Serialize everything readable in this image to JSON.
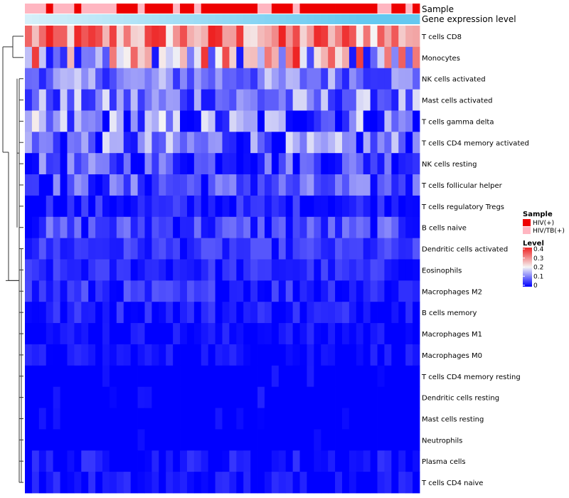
{
  "chart_data": {
    "type": "heatmap",
    "title": "",
    "annotation_tracks": [
      {
        "name": "Sample"
      },
      {
        "name": "Gene expression level"
      }
    ],
    "legend": {
      "sample_title": "Sample",
      "sample_items": [
        {
          "label": "HIV(+)",
          "color": "#ee0000"
        },
        {
          "label": "HIV/TB(+)",
          "color": "#ffb6c1"
        }
      ],
      "level_title": "Level",
      "level_ticks": [
        "0.4",
        "0.3",
        "0.2",
        "0.1",
        "0"
      ],
      "level_range": [
        0,
        0.4
      ],
      "colors": {
        "low": "#0000ff",
        "mid": "#f5f5f5",
        "high": "#ee2222"
      }
    },
    "rows": [
      "T cells CD8",
      "Monocytes",
      "NK cells activated",
      "Mast cells activated",
      "T cells gamma delta",
      "T cells CD4 memory activated",
      "NK cells resting",
      "T cells follicular helper",
      "T cells regulatory  Tregs",
      "B cells naive",
      "Dendritic cells activated",
      "Eosinophils",
      "Macrophages M2",
      "B cells memory",
      "Macrophages M1",
      "Macrophages M0",
      "T cells CD4 memory resting",
      "Dendritic cells resting",
      "Mast cells resting",
      "Neutrophils",
      "Plasma cells",
      "T cells CD4 naive"
    ],
    "sample_groups": [
      "HIV/TB(+)",
      "HIV/TB(+)",
      "HIV/TB(+)",
      "HIV(+)",
      "HIV/TB(+)",
      "HIV/TB(+)",
      "HIV/TB(+)",
      "HIV(+)",
      "HIV/TB(+)",
      "HIV/TB(+)",
      "HIV/TB(+)",
      "HIV/TB(+)",
      "HIV/TB(+)",
      "HIV(+)",
      "HIV(+)",
      "HIV(+)",
      "HIV/TB(+)",
      "HIV(+)",
      "HIV(+)",
      "HIV(+)",
      "HIV(+)",
      "HIV/TB(+)",
      "HIV(+)",
      "HIV(+)",
      "HIV/TB(+)",
      "HIV(+)",
      "HIV(+)",
      "HIV(+)",
      "HIV(+)",
      "HIV(+)",
      "HIV(+)",
      "HIV(+)",
      "HIV(+)",
      "HIV/TB(+)",
      "HIV/TB(+)",
      "HIV(+)",
      "HIV(+)",
      "HIV(+)",
      "HIV/TB(+)",
      "HIV(+)",
      "HIV(+)",
      "HIV(+)",
      "HIV(+)",
      "HIV(+)",
      "HIV(+)",
      "HIV(+)",
      "HIV(+)",
      "HIV(+)",
      "HIV(+)",
      "HIV(+)",
      "HIV/TB(+)",
      "HIV/TB(+)",
      "HIV(+)",
      "HIV(+)",
      "HIV/TB(+)",
      "HIV(+)"
    ],
    "expression_track": [
      0.05,
      0.07,
      0.09,
      0.11,
      0.13,
      0.15,
      0.17,
      0.19,
      0.21,
      0.23,
      0.25,
      0.27,
      0.29,
      0.31,
      0.33,
      0.35,
      0.37,
      0.39,
      0.41,
      0.43,
      0.45,
      0.47,
      0.49,
      0.51,
      0.53,
      0.55,
      0.57,
      0.59,
      0.61,
      0.63,
      0.65,
      0.67,
      0.69,
      0.71,
      0.73,
      0.75,
      0.77,
      0.79,
      0.81,
      0.83,
      0.85,
      0.87,
      0.89,
      0.91,
      0.93,
      0.95,
      0.97,
      0.99,
      1.0,
      1.0,
      1.0,
      1.0,
      1.0,
      1.0,
      1.0,
      1.0
    ],
    "row_profiles": [
      {
        "min": 0.18,
        "max": 0.4,
        "mean": 0.3
      },
      {
        "min": 0.02,
        "max": 0.4,
        "mean": 0.19
      },
      {
        "min": 0.03,
        "max": 0.17,
        "mean": 0.1
      },
      {
        "min": 0.02,
        "max": 0.2,
        "mean": 0.09
      },
      {
        "min": 0.0,
        "max": 0.24,
        "mean": 0.08
      },
      {
        "min": 0.0,
        "max": 0.19,
        "mean": 0.08
      },
      {
        "min": 0.0,
        "max": 0.14,
        "mean": 0.06
      },
      {
        "min": 0.0,
        "max": 0.13,
        "mean": 0.06
      },
      {
        "min": 0.0,
        "max": 0.08,
        "mean": 0.02
      },
      {
        "min": 0.0,
        "max": 0.11,
        "mean": 0.05
      },
      {
        "min": 0.0,
        "max": 0.07,
        "mean": 0.04
      },
      {
        "min": 0.0,
        "max": 0.06,
        "mean": 0.03
      },
      {
        "min": 0.0,
        "max": 0.09,
        "mean": 0.03
      },
      {
        "min": 0.0,
        "max": 0.07,
        "mean": 0.02
      },
      {
        "min": 0.0,
        "max": 0.05,
        "mean": 0.01
      },
      {
        "min": 0.0,
        "max": 0.05,
        "mean": 0.01
      },
      {
        "min": 0.0,
        "max": 0.03,
        "mean": 0.0
      },
      {
        "min": 0.0,
        "max": 0.03,
        "mean": 0.0
      },
      {
        "min": 0.0,
        "max": 0.02,
        "mean": 0.0
      },
      {
        "min": 0.0,
        "max": 0.02,
        "mean": 0.0
      },
      {
        "min": 0.0,
        "max": 0.07,
        "mean": 0.01
      },
      {
        "min": 0.0,
        "max": 0.06,
        "mean": 0.01
      }
    ]
  }
}
